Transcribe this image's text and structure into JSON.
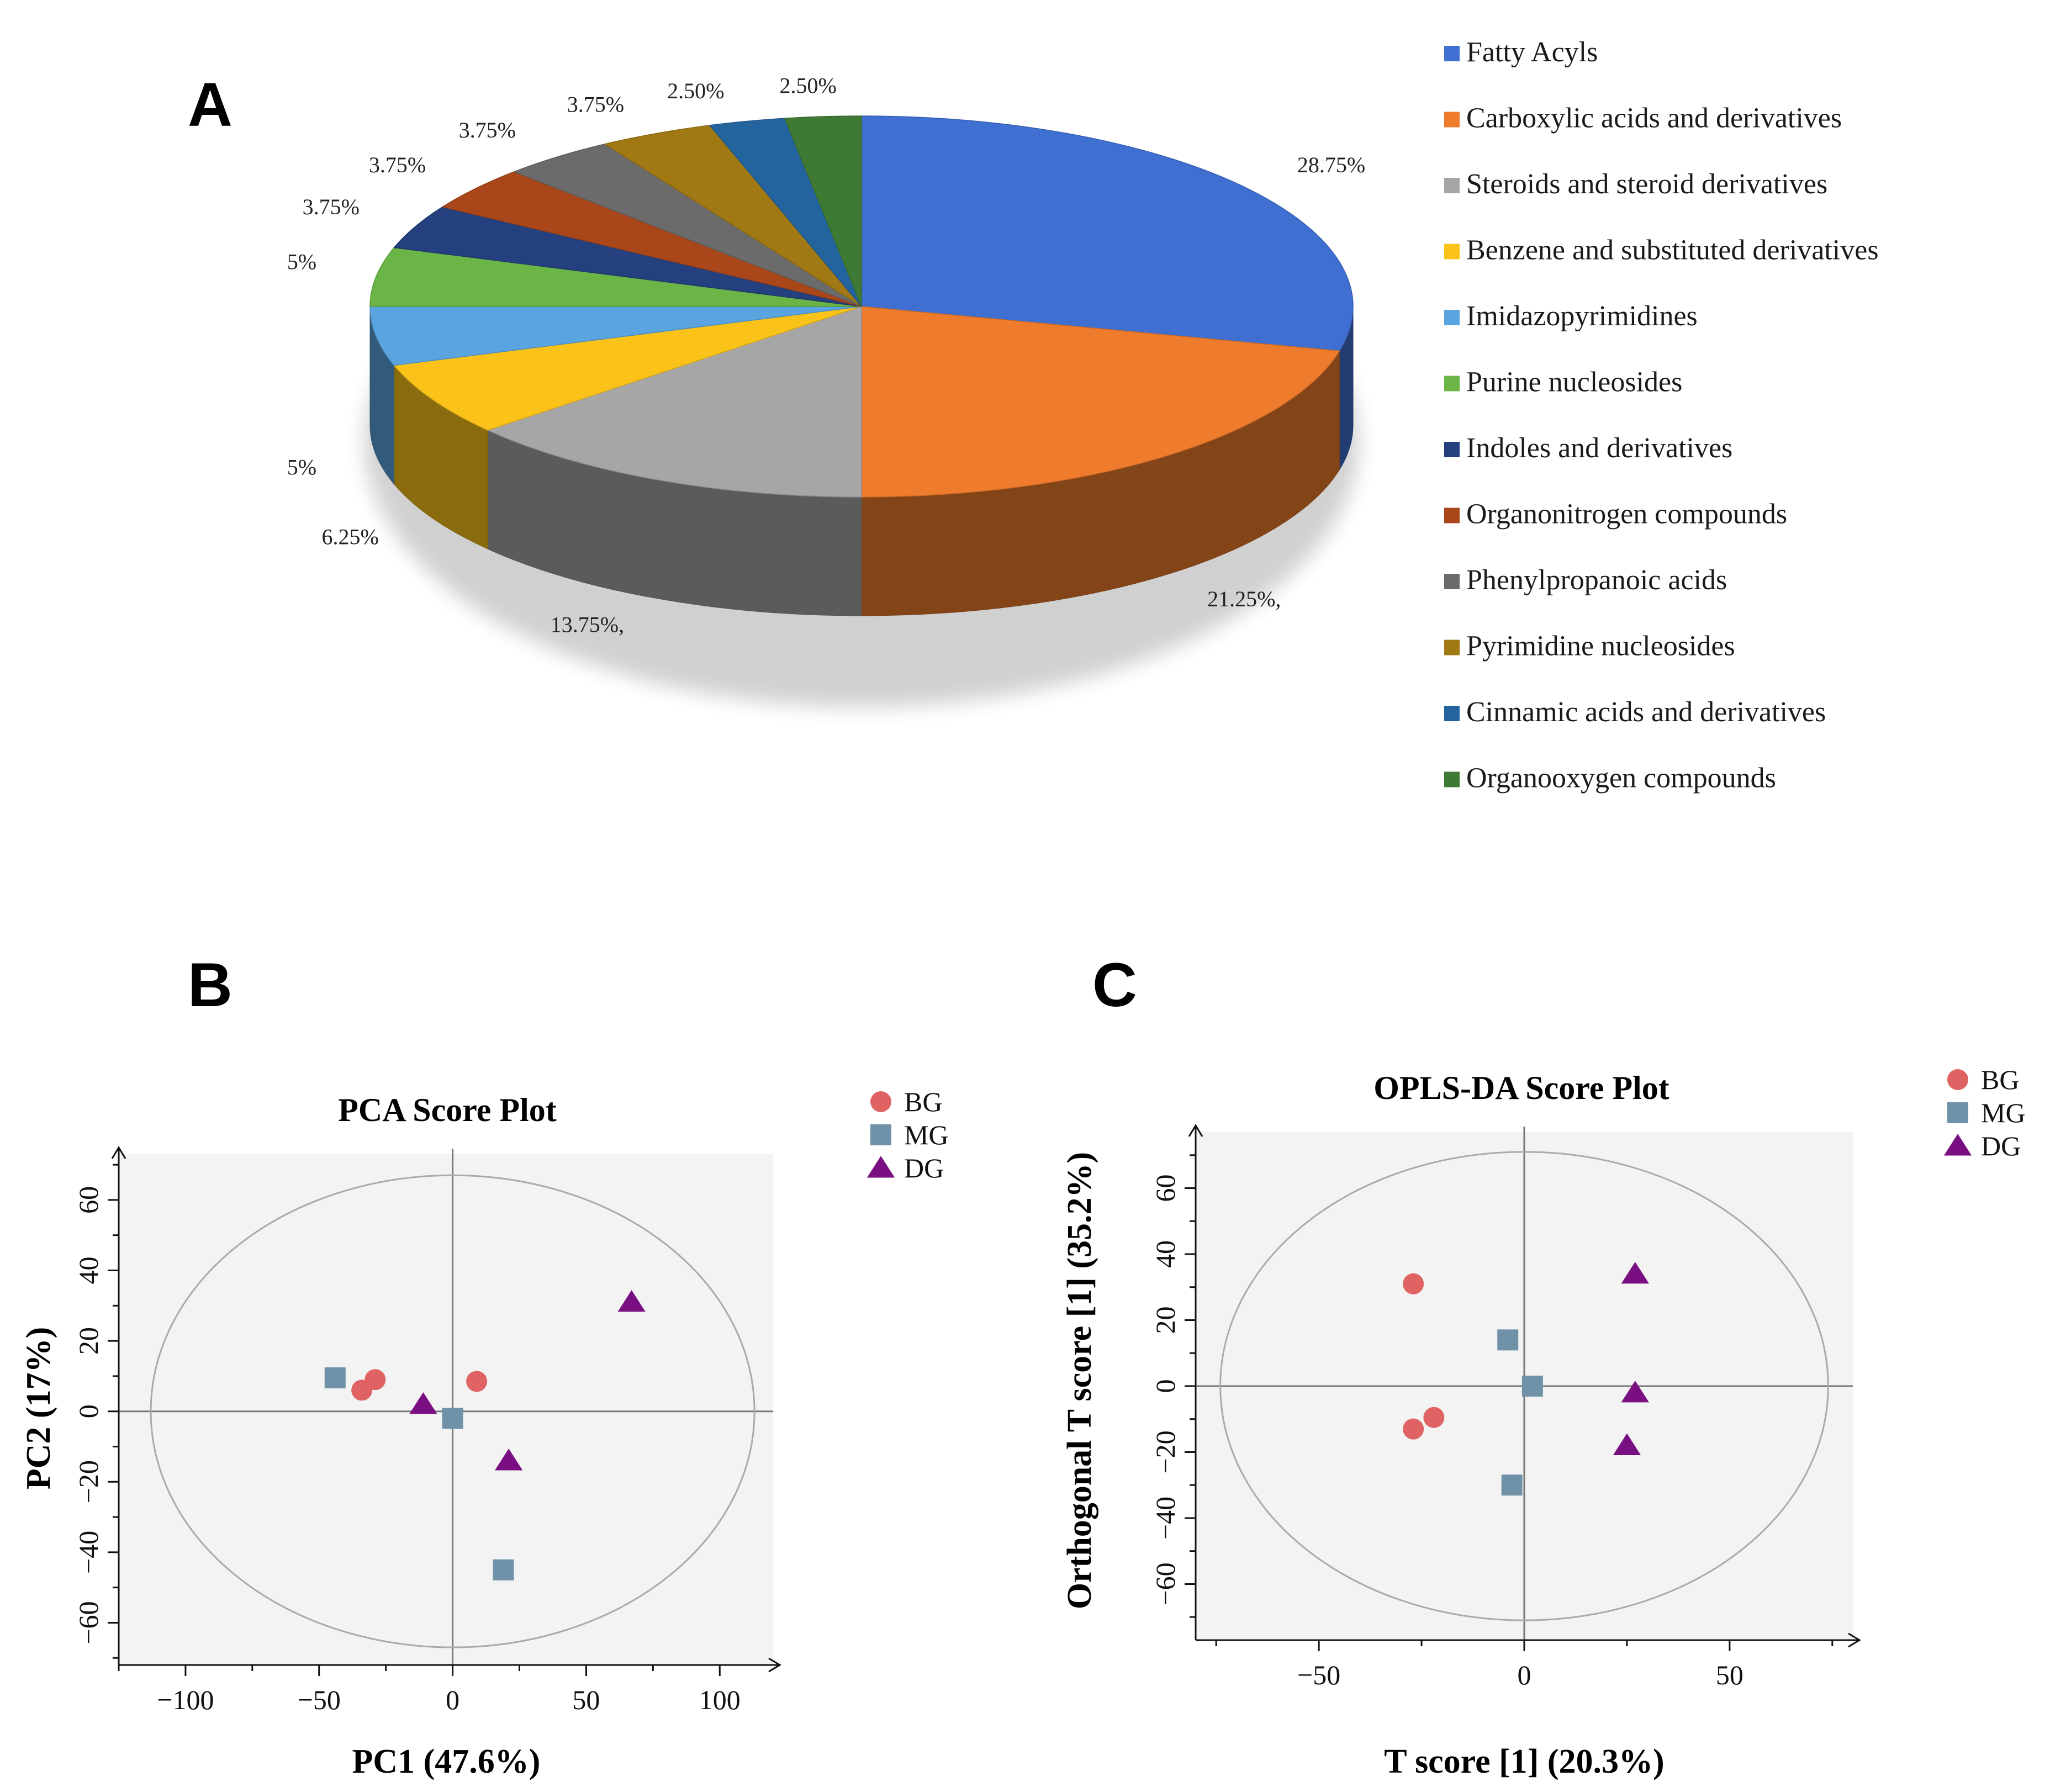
{
  "chart_data": [
    {
      "panel": "A",
      "type": "pie",
      "title": "",
      "slices": [
        {
          "name": "Fatty Acyls",
          "value": 28.75,
          "label": "28.75%",
          "color": "#3f6fd0"
        },
        {
          "name": "Carboxylic acids and derivatives",
          "value": 21.25,
          "label": "21.25%,",
          "color": "#ef7b2c"
        },
        {
          "name": "Steroids and steroid derivatives",
          "value": 13.75,
          "label": "13.75%,",
          "color": "#a6a6a6"
        },
        {
          "name": "Benzene and substituted derivatives",
          "value": 6.25,
          "label": "6.25%",
          "color": "#fbc21a"
        },
        {
          "name": "Imidazopyrimidines",
          "value": 5,
          "label": "5%",
          "color": "#5aa5e0"
        },
        {
          "name": "Purine nucleosides",
          "value": 5,
          "label": "5%",
          "color": "#6ab545"
        },
        {
          "name": "Indoles and derivatives",
          "value": 3.75,
          "label": "3.75%",
          "color": "#24407e"
        },
        {
          "name": "Organonitrogen compounds",
          "value": 3.75,
          "label": "3.75%",
          "color": "#a9471a"
        },
        {
          "name": "Phenylpropanoic acids",
          "value": 3.75,
          "label": "3.75%",
          "color": "#6b6b6b"
        },
        {
          "name": "Pyrimidine nucleosides",
          "value": 3.75,
          "label": "3.75%",
          "color": "#a07814"
        },
        {
          "name": "Cinnamic acids and derivatives",
          "value": 2.5,
          "label": "2.50%",
          "color": "#23649e"
        },
        {
          "name": "Organooxygen compounds",
          "value": 2.5,
          "label": "2.50%",
          "color": "#3f7a34"
        }
      ]
    },
    {
      "panel": "B",
      "type": "scatter",
      "title": "PCA Score Plot",
      "xlabel": "PC1 (47.6%)",
      "ylabel": "PC2 (17%)",
      "xlim": [
        -125,
        120
      ],
      "ylim": [
        -72,
        73
      ],
      "xticks": [
        -100,
        -50,
        0,
        50,
        100
      ],
      "xtick_labels": [
        "−100",
        "−50",
        "0",
        "50",
        "100"
      ],
      "yticks": [
        -60,
        -40,
        -20,
        0,
        20,
        40,
        60
      ],
      "ytick_labels": [
        "−60",
        "−40",
        "−20",
        "0",
        "20",
        "40",
        "60"
      ],
      "ellipse": {
        "rx": 113,
        "ry": 67
      },
      "series": [
        {
          "name": "BG",
          "marker": "circle",
          "color": "#e06363",
          "points": [
            [
              -34,
              6
            ],
            [
              -29,
              9
            ],
            [
              9,
              8.5
            ]
          ]
        },
        {
          "name": "MG",
          "marker": "square",
          "color": "#6f92a8",
          "points": [
            [
              -44,
              9.5
            ],
            [
              0,
              -2
            ],
            [
              19,
              -45
            ]
          ]
        },
        {
          "name": "DG",
          "marker": "triangle",
          "color": "#7a0f82",
          "points": [
            [
              67,
              31
            ],
            [
              -11,
              2
            ],
            [
              21,
              -14
            ]
          ]
        }
      ]
    },
    {
      "panel": "C",
      "type": "scatter",
      "title": "OPLS-DA Score Plot",
      "xlabel": "T score [1] (20.3%)",
      "ylabel": "Orthogonal T score [1]  (35.2%)",
      "xlim": [
        -80,
        80
      ],
      "ylim": [
        -77,
        77
      ],
      "xticks": [
        -50,
        0,
        50
      ],
      "xtick_labels": [
        "−50",
        "0",
        "50"
      ],
      "yticks": [
        -60,
        -40,
        -20,
        0,
        20,
        40,
        60
      ],
      "ytick_labels": [
        "−60",
        "−40",
        "−20",
        "0",
        "20",
        "40",
        "60"
      ],
      "ellipse": {
        "rx": 74,
        "ry": 71
      },
      "series": [
        {
          "name": "BG",
          "marker": "circle",
          "color": "#e06363",
          "points": [
            [
              -27,
              31
            ],
            [
              -27,
              -13
            ],
            [
              -22,
              -9.5
            ]
          ]
        },
        {
          "name": "MG",
          "marker": "square",
          "color": "#6f92a8",
          "points": [
            [
              -4,
              14
            ],
            [
              2,
              0
            ],
            [
              -3,
              -30
            ]
          ]
        },
        {
          "name": "DG",
          "marker": "triangle",
          "color": "#7a0f82",
          "points": [
            [
              27,
              34
            ],
            [
              27,
              -2
            ],
            [
              25,
              -18
            ]
          ]
        }
      ]
    }
  ],
  "panel_letters": {
    "a": "A",
    "b": "B",
    "c": "C"
  }
}
